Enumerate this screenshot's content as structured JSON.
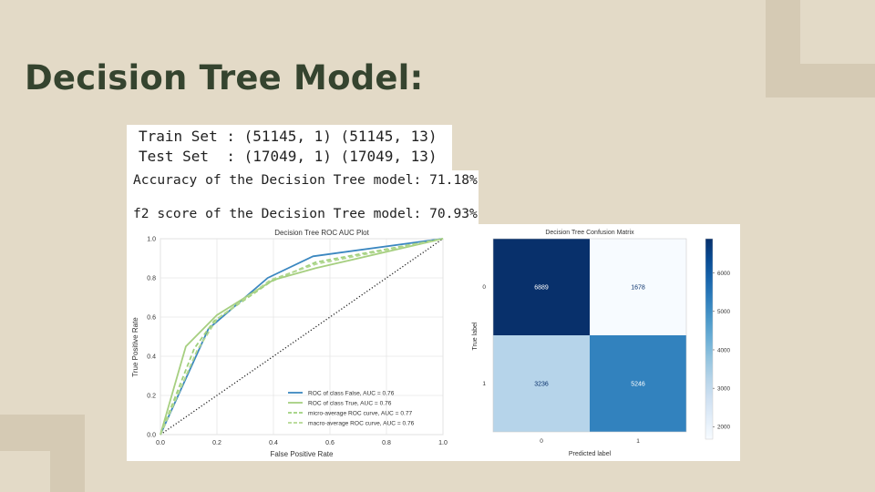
{
  "slide": {
    "title": "Decision Tree Model:"
  },
  "console": {
    "train_line": "Train Set : (51145, 1) (51145, 13)",
    "test_line": "Test Set  : (17049, 1) (17049, 13)",
    "accuracy_line": "Accuracy of the Decision Tree model: 71.18%",
    "f2_line": "f2 score of the Decision Tree model: 70.93%"
  },
  "colors": {
    "background": "#e3dac7",
    "title": "#35442f",
    "roc_false": "#3b87c0",
    "roc_true": "#a6cf80",
    "micro": "#9fd07c",
    "macro": "#b2d790",
    "cm_dark": "#08306b",
    "cm_light": "#f7fbff"
  },
  "chart_data": [
    {
      "type": "line",
      "title": "Decision Tree ROC AUC Plot",
      "xlabel": "False Positive Rate",
      "ylabel": "True Positive Rate",
      "xlim": [
        0,
        1
      ],
      "ylim": [
        0,
        1
      ],
      "xticks": [
        "0.0",
        "0.2",
        "0.4",
        "0.6",
        "0.8",
        "1.0"
      ],
      "yticks": [
        "0.0",
        "0.2",
        "0.4",
        "0.6",
        "0.8",
        "1.0"
      ],
      "grid": true,
      "legend_position": "bottom-right",
      "series": [
        {
          "name": "ROC of class False, AUC = 0.76",
          "color": "#3b87c0",
          "style": "solid",
          "x": [
            0,
            0.17,
            0.38,
            0.54,
            1
          ],
          "y": [
            0,
            0.54,
            0.8,
            0.91,
            1
          ]
        },
        {
          "name": "ROC of class True, AUC = 0.76",
          "color": "#a6cf80",
          "style": "solid",
          "x": [
            0,
            0.09,
            0.2,
            0.4,
            0.55,
            1
          ],
          "y": [
            0,
            0.45,
            0.61,
            0.79,
            0.85,
            1
          ]
        },
        {
          "name": "micro-average ROC curve, AUC = 0.77",
          "color": "#9fd07c",
          "style": "dashed",
          "x": [
            0,
            0.12,
            0.19,
            0.39,
            0.55,
            1
          ],
          "y": [
            0,
            0.44,
            0.58,
            0.78,
            0.88,
            1
          ]
        },
        {
          "name": "macro-average ROC curve, AUC = 0.76",
          "color": "#b2d790",
          "style": "dashed",
          "x": [
            0,
            0.13,
            0.2,
            0.39,
            0.55,
            1
          ],
          "y": [
            0,
            0.43,
            0.59,
            0.79,
            0.87,
            1
          ]
        }
      ],
      "diagonal": {
        "x": [
          0,
          1
        ],
        "y": [
          0,
          1
        ],
        "color": "#222222",
        "style": "dotted"
      }
    },
    {
      "type": "heatmap",
      "title": "Decision Tree Confusion Matrix",
      "xlabel": "Predicted label",
      "ylabel": "True label",
      "x_categories": [
        "0",
        "1"
      ],
      "y_categories": [
        "0",
        "1"
      ],
      "values": [
        [
          6889,
          1678
        ],
        [
          3236,
          5246
        ]
      ],
      "colorbar": {
        "min": 1678,
        "max": 6889,
        "ticks": [
          "2000",
          "3000",
          "4000",
          "5000",
          "6000"
        ],
        "tick_values": [
          2000,
          3000,
          4000,
          5000,
          6000
        ]
      }
    }
  ]
}
